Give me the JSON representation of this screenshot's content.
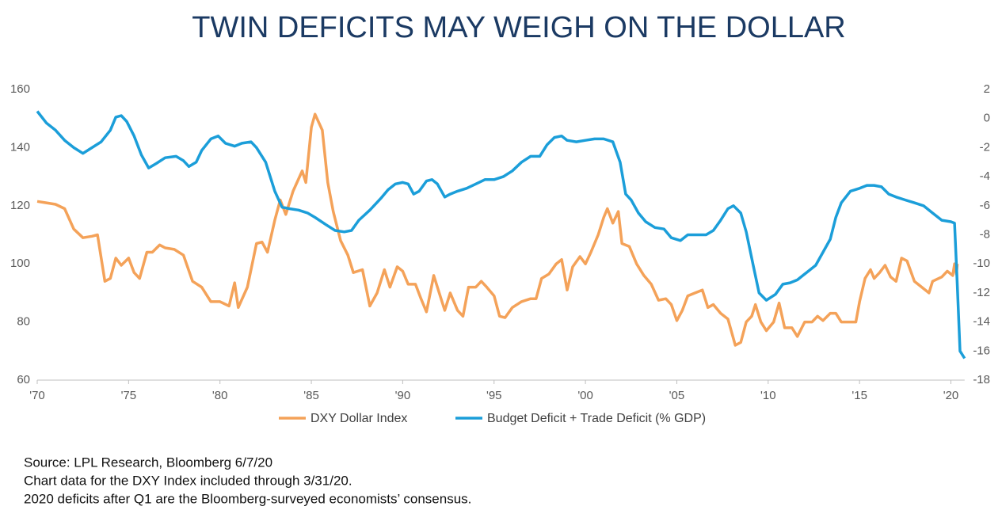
{
  "chart_data": {
    "type": "line",
    "title": "TWIN DEFICITS MAY WEIGH ON THE DOLLAR",
    "notes": [
      "Source: LPL Research, Bloomberg 6/7/20",
      "Chart data for the DXY Index included through 3/31/20.",
      "2020 deficits after Q1 are the Bloomberg-surveyed economists’ consensus."
    ],
    "xlim": [
      1970,
      2020.75
    ],
    "xticks": [
      {
        "value": 1970,
        "label": "'70"
      },
      {
        "value": 1975,
        "label": "'75"
      },
      {
        "value": 1980,
        "label": "'80"
      },
      {
        "value": 1985,
        "label": "'85"
      },
      {
        "value": 1990,
        "label": "'90"
      },
      {
        "value": 1995,
        "label": "'95"
      },
      {
        "value": 2000,
        "label": "'00"
      },
      {
        "value": 2005,
        "label": "'05"
      },
      {
        "value": 2010,
        "label": "'10"
      },
      {
        "value": 2015,
        "label": "'15"
      },
      {
        "value": 2020,
        "label": "'20"
      }
    ],
    "ylim": [
      60,
      160
    ],
    "yticks": [
      60,
      80,
      100,
      120,
      140,
      160
    ],
    "y2lim": [
      -18,
      2
    ],
    "y2ticks": [
      -18,
      -16,
      -14,
      -12,
      -10,
      -8,
      -6,
      -4,
      -2,
      0,
      2
    ],
    "grid": false,
    "legend": "bottom",
    "series": [
      {
        "name": "DXY Dollar Index",
        "color": "#f4a259",
        "axis": "y",
        "x": [
          1970,
          1970.5,
          1971,
          1971.5,
          1972,
          1972.5,
          1973,
          1973.3,
          1973.7,
          1974,
          1974.3,
          1974.6,
          1975,
          1975.3,
          1975.6,
          1976,
          1976.3,
          1976.7,
          1977,
          1977.5,
          1978,
          1978.5,
          1979,
          1979.5,
          1980,
          1980.5,
          1980.8,
          1981,
          1981.5,
          1982,
          1982.3,
          1982.6,
          1983,
          1983.3,
          1983.6,
          1984,
          1984.5,
          1984.7,
          1985,
          1985.2,
          1985.6,
          1985.9,
          1986.2,
          1986.6,
          1987,
          1987.3,
          1987.8,
          1988.2,
          1988.6,
          1989,
          1989.3,
          1989.7,
          1990,
          1990.3,
          1990.7,
          1991,
          1991.3,
          1991.7,
          1992,
          1992.3,
          1992.6,
          1993,
          1993.3,
          1993.6,
          1994,
          1994.3,
          1994.6,
          1995,
          1995.3,
          1995.6,
          1996,
          1996.5,
          1997,
          1997.3,
          1997.6,
          1998,
          1998.4,
          1998.7,
          1999,
          1999.3,
          1999.7,
          2000,
          2000.3,
          2000.7,
          2001,
          2001.2,
          2001.5,
          2001.8,
          2002,
          2002.4,
          2002.8,
          2003.2,
          2003.6,
          2004,
          2004.4,
          2004.7,
          2005,
          2005.3,
          2005.6,
          2006,
          2006.4,
          2006.7,
          2007,
          2007.4,
          2007.8,
          2008.2,
          2008.5,
          2008.8,
          2009.1,
          2009.3,
          2009.6,
          2009.9,
          2010.3,
          2010.6,
          2010.9,
          2011.3,
          2011.6,
          2012,
          2012.4,
          2012.7,
          2013,
          2013.4,
          2013.7,
          2014,
          2014.5,
          2014.8,
          2015,
          2015.3,
          2015.6,
          2015.8,
          2016.1,
          2016.4,
          2016.7,
          2017,
          2017.3,
          2017.6,
          2018,
          2018.5,
          2018.8,
          2019,
          2019.5,
          2019.8,
          2020.1,
          2020.2,
          2020.3,
          2020.35
        ],
        "values": [
          121.5,
          121,
          120.5,
          119,
          112,
          109,
          109.5,
          110,
          94,
          95,
          102,
          99.5,
          102,
          97,
          95,
          104,
          104,
          106.5,
          105.5,
          105,
          103,
          94,
          92,
          87,
          87,
          85.5,
          93.5,
          85,
          92,
          107,
          107.5,
          104,
          115,
          122,
          117,
          125,
          132,
          128,
          147,
          151.5,
          146,
          128,
          118,
          108,
          103,
          97,
          98,
          85.5,
          90,
          98,
          92,
          99,
          97.5,
          93,
          93,
          88,
          83.5,
          96,
          90,
          84,
          90,
          84,
          82,
          92,
          92,
          94,
          92,
          89,
          82,
          81.5,
          85,
          87,
          88,
          88,
          95,
          96.5,
          100,
          101.5,
          91,
          99,
          102.5,
          100,
          104,
          110,
          116,
          119,
          114,
          118,
          107,
          106,
          100,
          96,
          93,
          87.5,
          88,
          86,
          80.5,
          84,
          89,
          90,
          91,
          85,
          86,
          83,
          81,
          72,
          73,
          80,
          82,
          86,
          80,
          77,
          80,
          86.5,
          78,
          78,
          75,
          80,
          80,
          82,
          80.5,
          83,
          83,
          80,
          80,
          80,
          87,
          95,
          98,
          95,
          97,
          99.5,
          95.5,
          94,
          102,
          101,
          94,
          91.5,
          90,
          94,
          95.5,
          97.5,
          96,
          100,
          96.5,
          100
        ]
      },
      {
        "name": "Budget Deficit + Trade Deficit (% GDP)",
        "color": "#1b9ed9",
        "axis": "y2",
        "x": [
          1970,
          1970.5,
          1971,
          1971.5,
          1972,
          1972.5,
          1973,
          1973.5,
          1974,
          1974.3,
          1974.6,
          1974.9,
          1975.3,
          1975.7,
          1976.1,
          1976.5,
          1977,
          1977.6,
          1978,
          1978.3,
          1978.7,
          1979,
          1979.5,
          1979.9,
          1980.3,
          1980.8,
          1981.2,
          1981.7,
          1982,
          1982.5,
          1983,
          1983.4,
          1983.8,
          1984.3,
          1984.8,
          1985.2,
          1985.8,
          1986.3,
          1986.8,
          1987.2,
          1987.6,
          1988.2,
          1988.8,
          1989.2,
          1989.6,
          1990,
          1990.3,
          1990.6,
          1990.9,
          1991.3,
          1991.6,
          1991.9,
          1992.3,
          1992.6,
          1993,
          1993.5,
          1994,
          1994.5,
          1995,
          1995.5,
          1996,
          1996.5,
          1997,
          1997.5,
          1997.9,
          1998.3,
          1998.7,
          1999,
          1999.5,
          2000,
          2000.5,
          2001,
          2001.5,
          2001.9,
          2002.2,
          2002.5,
          2002.9,
          2003.3,
          2003.8,
          2004.3,
          2004.7,
          2005.2,
          2005.6,
          2006.1,
          2006.6,
          2007,
          2007.4,
          2007.8,
          2008.1,
          2008.5,
          2008.8,
          2009.2,
          2009.5,
          2009.9,
          2010.4,
          2010.8,
          2011.2,
          2011.6,
          2012.1,
          2012.6,
          2013,
          2013.4,
          2013.7,
          2014,
          2014.5,
          2015,
          2015.4,
          2015.8,
          2016.2,
          2016.6,
          2017,
          2017.5,
          2018,
          2018.5,
          2019,
          2019.5,
          2020,
          2020.2,
          2020.35,
          2020.5,
          2020.75
        ],
        "values": [
          0.5,
          -0.3,
          -0.8,
          -1.5,
          -2,
          -2.4,
          -2,
          -1.6,
          -0.8,
          0.1,
          0.2,
          -0.2,
          -1.2,
          -2.5,
          -3.4,
          -3.1,
          -2.7,
          -2.6,
          -2.9,
          -3.3,
          -3,
          -2.2,
          -1.4,
          -1.2,
          -1.7,
          -1.9,
          -1.7,
          -1.6,
          -2,
          -3,
          -5,
          -6.1,
          -6.2,
          -6.3,
          -6.5,
          -6.8,
          -7.3,
          -7.7,
          -7.8,
          -7.7,
          -7,
          -6.3,
          -5.5,
          -4.9,
          -4.5,
          -4.4,
          -4.5,
          -5.2,
          -5,
          -4.3,
          -4.2,
          -4.5,
          -5.4,
          -5.2,
          -5,
          -4.8,
          -4.5,
          -4.2,
          -4.2,
          -4,
          -3.6,
          -3,
          -2.6,
          -2.6,
          -1.8,
          -1.3,
          -1.2,
          -1.5,
          -1.6,
          -1.5,
          -1.4,
          -1.4,
          -1.6,
          -3,
          -5.2,
          -5.6,
          -6.5,
          -7.1,
          -7.5,
          -7.6,
          -8.2,
          -8.4,
          -8,
          -8,
          -8,
          -7.7,
          -7,
          -6.2,
          -6,
          -6.5,
          -7.8,
          -10.2,
          -12,
          -12.5,
          -12.1,
          -11.4,
          -11.3,
          -11.1,
          -10.6,
          -10.1,
          -9.2,
          -8.3,
          -6.8,
          -5.8,
          -5,
          -4.8,
          -4.6,
          -4.6,
          -4.7,
          -5.2,
          -5.4,
          -5.6,
          -5.8,
          -6,
          -6.5,
          -7,
          -7.1,
          -7.2,
          -11.5,
          -16,
          -16.5
        ]
      }
    ]
  }
}
